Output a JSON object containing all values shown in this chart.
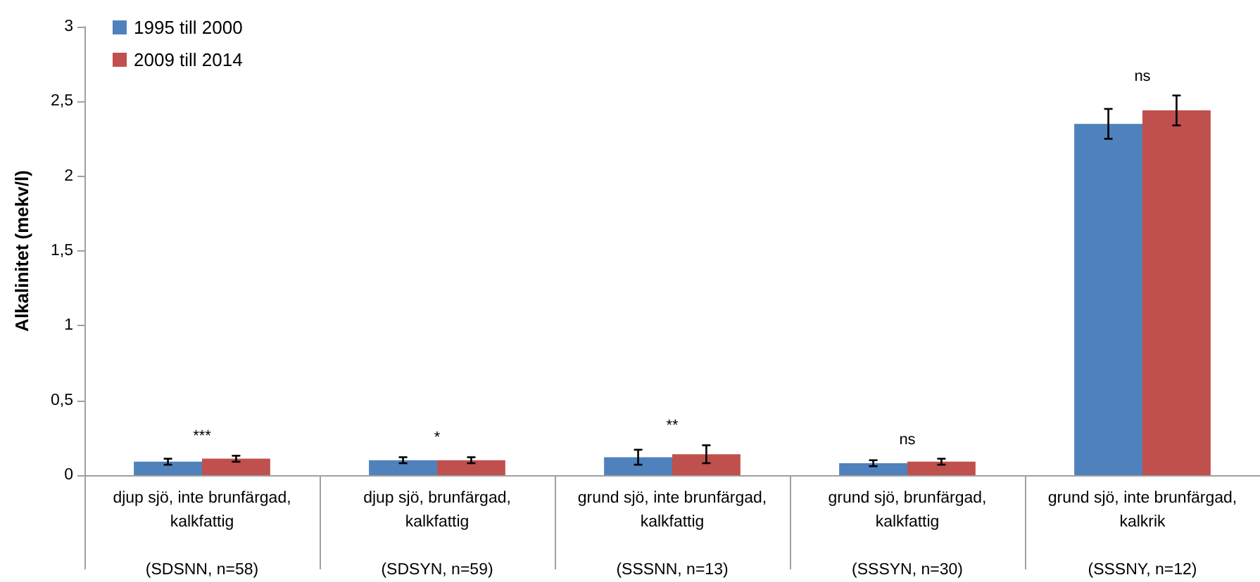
{
  "chart_data": {
    "type": "bar",
    "ylabel": "Alkalinitet (mekv/l)",
    "categories": [
      "djup sjö, inte brunfärgad,\nkalkfattig\n\n(SDSNN, n=58)",
      "djup sjö, brunfärgad,\nkalkfattig\n\n(SDSYN, n=59)",
      "grund sjö, inte brunfärgad,\nkalkfattig\n\n(SSSNN, n=13)",
      "grund sjö, brunfärgad,\nkalkfattig\n\n(SSSYN, n=30)",
      "grund sjö, inte brunfärgad,\nkalkrik\n\n(SSSNY, n=12)"
    ],
    "series": [
      {
        "name": "1995 till 2000",
        "color": "#4f81bd",
        "values": [
          0.09,
          0.1,
          0.12,
          0.08,
          2.35
        ],
        "errors": [
          0.02,
          0.02,
          0.05,
          0.02,
          0.1
        ]
      },
      {
        "name": "2009 till 2014",
        "color": "#c0504d",
        "values": [
          0.11,
          0.1,
          0.14,
          0.09,
          2.44
        ],
        "errors": [
          0.02,
          0.02,
          0.06,
          0.02,
          0.1
        ]
      }
    ],
    "ylim": [
      0,
      3
    ],
    "yticks": [
      0,
      {
        "value": 0.5,
        "label": "0,5"
      },
      1,
      {
        "value": 1.5,
        "label": "1,5"
      },
      2,
      {
        "value": 2.5,
        "label": "2,5"
      },
      3
    ],
    "annotations": [
      "***",
      "*",
      "**",
      "ns",
      "ns"
    ],
    "grid": false,
    "legend": "top left"
  }
}
